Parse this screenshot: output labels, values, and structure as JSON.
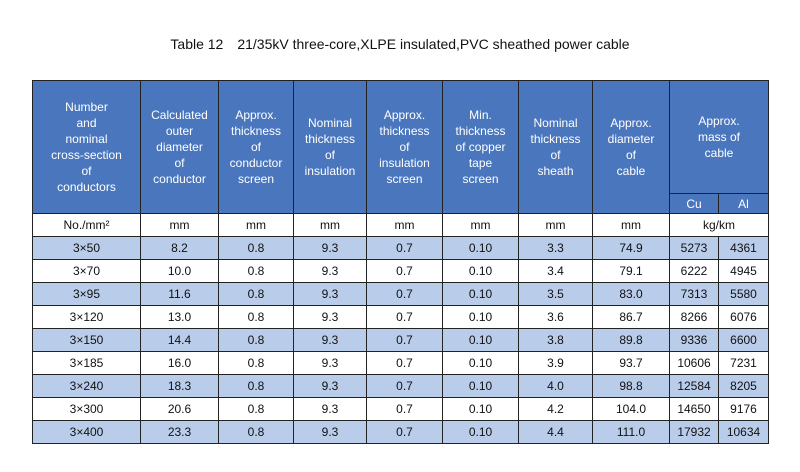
{
  "title": {
    "number": "Table 12",
    "text": "21/35kV three-core,XLPE insulated,PVC sheathed power cable"
  },
  "headers": [
    "Number\nand\nnominal\ncross-section\nof\nconductors",
    "Calculated\nouter\ndiameter\nof\nconductor",
    "Approx.\nthickness\nof\nconductor\nscreen",
    "Nominal\nthickness\nof\ninsulation",
    "Approx.\nthickness\nof\ninsulation\nscreen",
    "Min.\nthickness\nof copper\ntape\nscreen",
    "Nominal\nthickness\nof\nsheath",
    "Approx.\ndiameter\nof\ncable",
    "Approx.\nmass of\ncable"
  ],
  "mass_subheaders": [
    "Cu",
    "Al"
  ],
  "units": [
    "No./mm²",
    "mm",
    "mm",
    "mm",
    "mm",
    "mm",
    "mm",
    "mm",
    "kg/km"
  ],
  "rows": [
    [
      "3×50",
      "8.2",
      "0.8",
      "9.3",
      "0.7",
      "0.10",
      "3.3",
      "74.9",
      "5273",
      "4361"
    ],
    [
      "3×70",
      "10.0",
      "0.8",
      "9.3",
      "0.7",
      "0.10",
      "3.4",
      "79.1",
      "6222",
      "4945"
    ],
    [
      "3×95",
      "11.6",
      "0.8",
      "9.3",
      "0.7",
      "0.10",
      "3.5",
      "83.0",
      "7313",
      "5580"
    ],
    [
      "3×120",
      "13.0",
      "0.8",
      "9.3",
      "0.7",
      "0.10",
      "3.6",
      "86.7",
      "8266",
      "6076"
    ],
    [
      "3×150",
      "14.4",
      "0.8",
      "9.3",
      "0.7",
      "0.10",
      "3.8",
      "89.8",
      "9336",
      "6600"
    ],
    [
      "3×185",
      "16.0",
      "0.8",
      "9.3",
      "0.7",
      "0.10",
      "3.9",
      "93.7",
      "10606",
      "7231"
    ],
    [
      "3×240",
      "18.3",
      "0.8",
      "9.3",
      "0.7",
      "0.10",
      "4.0",
      "98.8",
      "12584",
      "8205"
    ],
    [
      "3×300",
      "20.6",
      "0.8",
      "9.3",
      "0.7",
      "0.10",
      "4.2",
      "104.0",
      "14650",
      "9176"
    ],
    [
      "3×400",
      "23.3",
      "0.8",
      "9.3",
      "0.7",
      "0.10",
      "4.4",
      "111.0",
      "17932",
      "10634"
    ]
  ],
  "colors": {
    "header_bg": "#4a76bd",
    "header_text": "#ffffff",
    "row_shade": "#b9cce9",
    "row_plain": "#ffffff"
  }
}
